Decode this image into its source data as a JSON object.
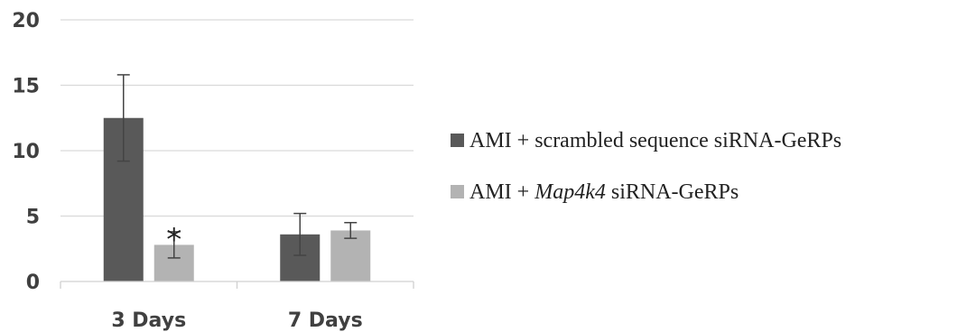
{
  "chart_data": {
    "type": "bar",
    "title": "",
    "xlabel": "",
    "ylabel": "",
    "ylim": [
      0,
      20
    ],
    "yticks": [
      0,
      5,
      10,
      15,
      20
    ],
    "grid": true,
    "legend_position": "right",
    "categories": [
      "3 Days",
      "7 Days"
    ],
    "series": [
      {
        "name_parts": [
          "AMI + scrambled sequence siRNA-GeRPs"
        ],
        "color": "#595959",
        "values": [
          12.5,
          3.6
        ],
        "errors": [
          3.3,
          1.6
        ]
      },
      {
        "name_parts": [
          "AMI + ",
          "Map4k4",
          " siRNA-GeRPs"
        ],
        "color": "#b3b3b3",
        "values": [
          2.8,
          3.9
        ],
        "errors": [
          1.0,
          0.6
        ]
      }
    ],
    "annotations": [
      {
        "text": "*",
        "series": 1,
        "category": 0
      }
    ]
  }
}
